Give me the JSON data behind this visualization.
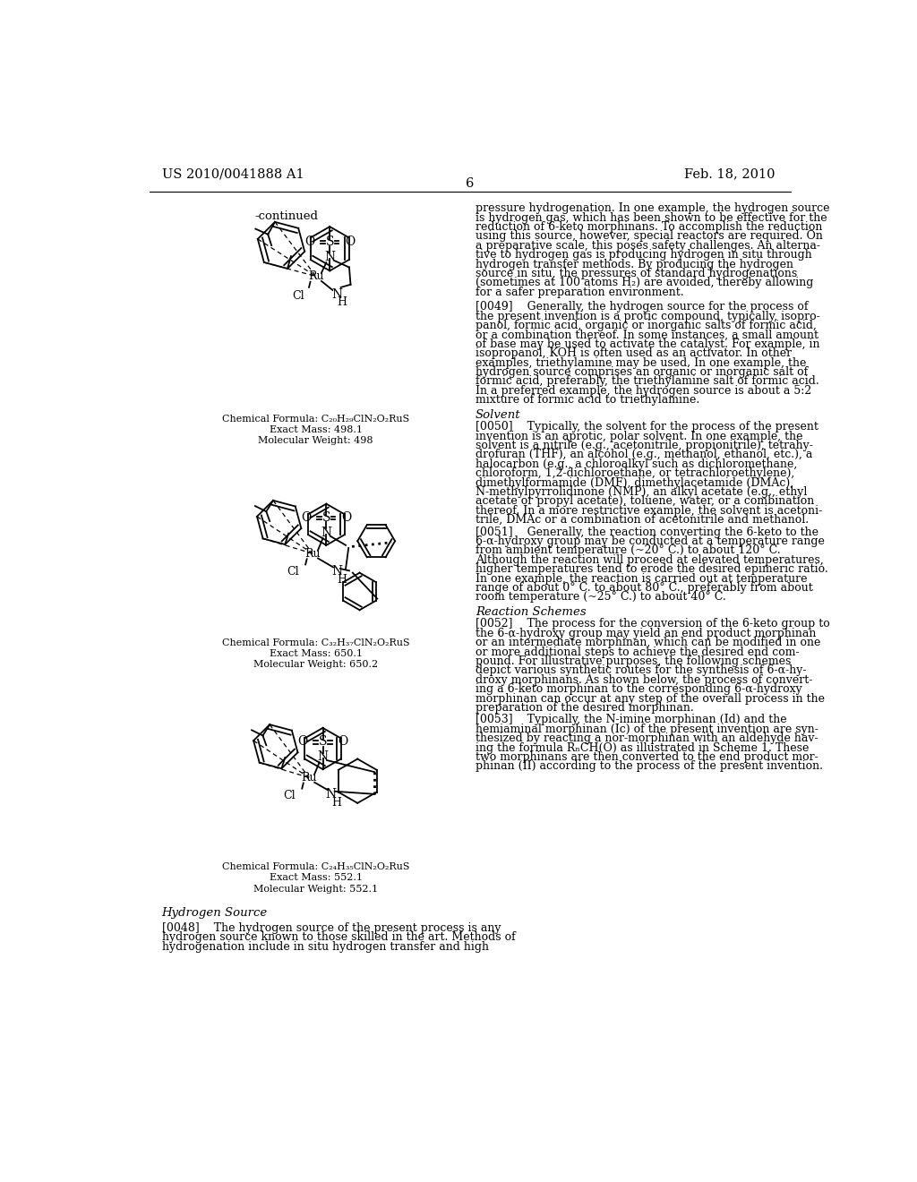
{
  "patent_number": "US 2010/0041888 A1",
  "date": "Feb. 18, 2010",
  "page_number": "6",
  "continued_label": "-continued",
  "compound1_formula": "Chemical Formula: C₂₀H₂₉ClN₂O₂RuS",
  "compound1_mass": "Exact Mass: 498.1",
  "compound1_mw": "Molecular Weight: 498",
  "compound2_formula": "Chemical Formula: C₃₂H₃₇ClN₂O₂RuS",
  "compound2_mass": "Exact Mass: 650.1",
  "compound2_mw": "Molecular Weight: 650.2",
  "compound3_formula": "Chemical Formula: C₂₄H₃₅ClN₂O₂RuS",
  "compound3_mass": "Exact Mass: 552.1",
  "compound3_mw": "Molecular Weight: 552.1",
  "h_source_header": "Hydrogen Source",
  "right_col_lines_top": [
    "pressure hydrogenation. In one example, the hydrogen source",
    "is hydrogen gas, which has been shown to be effective for the",
    "reduction of 6-keto morphinans. To accomplish the reduction",
    "using this source, however, special reactors are required. On",
    "a preparative scale, this poses safety challenges. An alterna-",
    "tive to hydrogen gas is producing hydrogen in situ through",
    "hydrogen transfer methods. By producing the hydrogen",
    "source in situ, the pressures of standard hydrogenations",
    "(sometimes at 100 atoms H₂) are avoided, thereby allowing",
    "for a safer preparation environment."
  ],
  "para0049_first": "[0049]    Generally, the hydrogen source for the process of",
  "para0049_rest": [
    "the present invention is a protic compound, typically, isopro-",
    "panol, formic acid, organic or inorganic salts of formic acid,",
    "or a combination thereof. In some instances, a small amount",
    "of base may be used to activate the catalyst. For example, in",
    "isopropanol, KOH is often used as an activator. In other",
    "examples, triethylamine may be used. In one example, the",
    "hydrogen source comprises an organic or inorganic salt of",
    "formic acid, preferably, the triethylamine salt of formic acid.",
    "In a preferred example, the hydrogen source is about a 5:2",
    "mixture of formic acid to triethylamine."
  ],
  "solvent_header": "Solvent",
  "para0050_first": "[0050]    Typically, the solvent for the process of the present",
  "para0050_rest": [
    "invention is an aprotic, polar solvent. In one example, the",
    "solvent is a nitrile (e.g., acetonitrile, propionitrile), tetrahy-",
    "drofuran (THF), an alcohol (e.g., methanol, ethanol, etc.), a",
    "halocarbon (e.g., a chloroalkyl such as dichloromethane,",
    "chloroform, 1,2-dichloroethane, or tetrachloroethylene),",
    "dimethylformamide (DMF), dimethylacetamide (DMAc),",
    "N-methylpyrrolidinone (NMP), an alkyl acetate (e.g., ethyl",
    "acetate or propyl acetate), toluene, water, or a combination",
    "thereof. In a more restrictive example, the solvent is acetoni-",
    "trile, DMAc or a combination of acetonitrile and methanol."
  ],
  "para0051_first": "[0051]    Generally, the reaction converting the 6-keto to the",
  "para0051_rest": [
    "6-α-hydroxy group may be conducted at a temperature range",
    "from ambient temperature (~20° C.) to about 120° C.",
    "Although the reaction will proceed at elevated temperatures,",
    "higher temperatures tend to erode the desired epimeric ratio.",
    "In one example, the reaction is carried out at temperature",
    "range of about 0° C. to about 80° C., preferably from about",
    "room temperature (~25° C.) to about 40° C."
  ],
  "rxn_header": "Reaction Schemes",
  "para0052_first": "[0052]    The process for the conversion of the 6-keto group to",
  "para0052_rest": [
    "the 6-α-hydroxy group may yield an end product morphinan",
    "or an intermediate morphinan, which can be modified in one",
    "or more additional steps to achieve the desired end com-",
    "pound. For illustrative purposes, the following schemes",
    "depict various synthetic routes for the synthesis of 6-α-hy-",
    "droxy morphinans. As shown below, the process of convert-",
    "ing a 6-keto morphinan to the corresponding 6-α-hydroxy",
    "morphinan can occur at any step of the overall process in the",
    "preparation of the desired morphinan."
  ],
  "para0053_first": "[0053]    Typically, the N-imine morphinan (Id) and the",
  "para0053_rest": [
    "hemiaminal morphinan (Ic) of the present invention are syn-",
    "thesized by reacting a nor-morphinan with an aldehyde hav-",
    "ing the formula RₙCH(O) as illustrated in Scheme 1. These",
    "two morphinans are then converted to the end product mor-",
    "phinan (II) according to the process of the present invention."
  ],
  "para0048_first": "[0048]    The hydrogen source of the present process is any",
  "para0048_rest": [
    "hydrogen source known to those skilled in the art. Methods of",
    "hydrogenation include in situ hydrogen transfer and high"
  ]
}
